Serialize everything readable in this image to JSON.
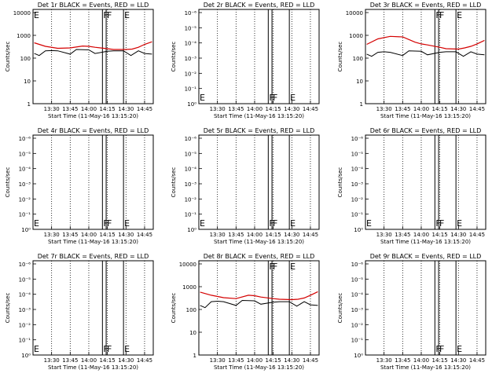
{
  "chart_data": [
    {
      "type": "line",
      "title": "Det 1r BLACK = Events, RED = LLD",
      "xlabel": "Start Time (11-May-16 13:15:20)",
      "ylabel": "Counts/sec",
      "yscale": "log",
      "x_tick_labels": [
        "13:30",
        "13:45",
        "14:00",
        "14:15",
        "14:30",
        "14:45"
      ],
      "y_tick_labels": [
        "1",
        "10",
        "100",
        "1000",
        "10000"
      ],
      "flags": [
        {
          "time": "13:15",
          "label": "E"
        },
        {
          "time": "14:11",
          "label": "F"
        },
        {
          "time": "14:14",
          "label": "F"
        },
        {
          "time": "14:28",
          "label": "E"
        }
      ],
      "series": [
        {
          "name": "Events",
          "color": "#000000",
          "x": [
            "13:16",
            "13:20",
            "13:25",
            "13:30",
            "13:35",
            "13:45",
            "13:50",
            "14:00",
            "14:05",
            "14:15",
            "14:20",
            "14:28",
            "14:34",
            "14:40",
            "14:45",
            "14:51"
          ],
          "y": [
            160,
            130,
            210,
            215,
            210,
            150,
            240,
            230,
            160,
            200,
            210,
            210,
            130,
            210,
            160,
            150
          ]
        },
        {
          "name": "LLD",
          "color": "#d40000",
          "x": [
            "13:16",
            "13:25",
            "13:35",
            "13:45",
            "13:55",
            "14:00",
            "14:05",
            "14:15",
            "14:20",
            "14:30",
            "14:35",
            "14:40",
            "14:45",
            "14:51"
          ],
          "y": [
            470,
            330,
            270,
            280,
            340,
            330,
            300,
            260,
            240,
            240,
            250,
            300,
            400,
            520
          ]
        }
      ]
    },
    {
      "type": "line",
      "title": "Det 2r BLACK = Events, RED = LLD",
      "xlabel": "Start Time (11-May-16 13:15:20)",
      "ylabel": "Counts/sec",
      "yscale": "log",
      "x_tick_labels": [
        "13:30",
        "13:45",
        "14:00",
        "14:15",
        "14:30",
        "14:45"
      ],
      "y_tick_labels": [
        "10⁰",
        "10⁻¹",
        "10⁻²",
        "10⁻³",
        "10⁻⁴",
        "10⁻⁵",
        "10⁻⁶"
      ],
      "flags": [
        {
          "time": "13:15",
          "label": "E"
        },
        {
          "time": "14:11",
          "label": "F"
        },
        {
          "time": "14:14",
          "label": "F"
        },
        {
          "time": "14:28",
          "label": "E"
        }
      ],
      "series": []
    },
    {
      "type": "line",
      "title": "Det 3r BLACK = Events, RED = LLD",
      "xlabel": "Start Time (11-May-16 13:15:20)",
      "ylabel": "Counts/sec",
      "yscale": "log",
      "x_tick_labels": [
        "13:30",
        "13:45",
        "14:00",
        "14:15",
        "14:30",
        "14:45"
      ],
      "y_tick_labels": [
        "1",
        "10",
        "100",
        "1000",
        "10000"
      ],
      "flags": [
        {
          "time": "14:11",
          "label": "F"
        },
        {
          "time": "14:14",
          "label": "F"
        },
        {
          "time": "14:28",
          "label": "E"
        }
      ],
      "series": [
        {
          "name": "Events",
          "color": "#000000",
          "x": [
            "13:16",
            "13:20",
            "13:25",
            "13:30",
            "13:35",
            "13:45",
            "13:50",
            "14:00",
            "14:05",
            "14:15",
            "14:20",
            "14:28",
            "14:34",
            "14:40",
            "14:45",
            "14:51"
          ],
          "y": [
            150,
            120,
            180,
            190,
            180,
            130,
            210,
            200,
            140,
            180,
            190,
            190,
            120,
            190,
            150,
            140
          ]
        },
        {
          "name": "LLD",
          "color": "#d40000",
          "x": [
            "13:16",
            "13:25",
            "13:35",
            "13:45",
            "13:55",
            "14:00",
            "14:05",
            "14:15",
            "14:20",
            "14:30",
            "14:35",
            "14:40",
            "14:45",
            "14:51"
          ],
          "y": [
            400,
            700,
            900,
            850,
            500,
            420,
            380,
            300,
            260,
            250,
            280,
            330,
            420,
            600
          ]
        }
      ]
    },
    {
      "type": "line",
      "title": "Det 4r BLACK = Events, RED = LLD",
      "xlabel": "Start Time (11-May-16 13:15:20)",
      "ylabel": "Counts/sec",
      "yscale": "log",
      "x_tick_labels": [
        "13:30",
        "13:45",
        "14:00",
        "14:15",
        "14:30",
        "14:45"
      ],
      "y_tick_labels": [
        "10⁰",
        "10⁻¹",
        "10⁻²",
        "10⁻³",
        "10⁻⁴",
        "10⁻⁵",
        "10⁻⁶"
      ],
      "flags": [
        {
          "time": "13:15",
          "label": "E"
        },
        {
          "time": "14:11",
          "label": "F"
        },
        {
          "time": "14:14",
          "label": "F"
        },
        {
          "time": "14:28",
          "label": "E"
        }
      ],
      "series": []
    },
    {
      "type": "line",
      "title": "Det 5r BLACK = Events, RED = LLD",
      "xlabel": "Start Time (11-May-16 13:15:20)",
      "ylabel": "Counts/sec",
      "yscale": "log",
      "x_tick_labels": [
        "13:30",
        "13:45",
        "14:00",
        "14:15",
        "14:30",
        "14:45"
      ],
      "y_tick_labels": [
        "10⁰",
        "10⁻¹",
        "10⁻²",
        "10⁻³",
        "10⁻⁴",
        "10⁻⁵",
        "10⁻⁶"
      ],
      "flags": [
        {
          "time": "13:15",
          "label": "E"
        },
        {
          "time": "14:11",
          "label": "F"
        },
        {
          "time": "14:14",
          "label": "F"
        },
        {
          "time": "14:28",
          "label": "E"
        }
      ],
      "series": []
    },
    {
      "type": "line",
      "title": "Det 6r BLACK = Events, RED = LLD",
      "xlabel": "Start Time (11-May-16 13:15:20)",
      "ylabel": "Counts/sec",
      "yscale": "log",
      "x_tick_labels": [
        "13:30",
        "13:45",
        "14:00",
        "14:15",
        "14:30",
        "14:45"
      ],
      "y_tick_labels": [
        "10⁰",
        "10⁻¹",
        "10⁻²",
        "10⁻³",
        "10⁻⁴",
        "10⁻⁵",
        "10⁻⁶"
      ],
      "flags": [
        {
          "time": "13:15",
          "label": "E"
        },
        {
          "time": "14:11",
          "label": "F"
        },
        {
          "time": "14:14",
          "label": "F"
        },
        {
          "time": "14:28",
          "label": "E"
        }
      ],
      "series": []
    },
    {
      "type": "line",
      "title": "Det 7r BLACK = Events, RED = LLD",
      "xlabel": "Start Time (11-May-16 13:15:20)",
      "ylabel": "Counts/sec",
      "yscale": "log",
      "x_tick_labels": [
        "13:30",
        "13:45",
        "14:00",
        "14:15",
        "14:30",
        "14:45"
      ],
      "y_tick_labels": [
        "10⁰",
        "10⁻¹",
        "10⁻²",
        "10⁻³",
        "10⁻⁴",
        "10⁻⁵",
        "10⁻⁶"
      ],
      "flags": [
        {
          "time": "13:15",
          "label": "E"
        },
        {
          "time": "14:11",
          "label": "F"
        },
        {
          "time": "14:14",
          "label": "F"
        },
        {
          "time": "14:28",
          "label": "E"
        }
      ],
      "series": []
    },
    {
      "type": "line",
      "title": "Det 8r BLACK = Events, RED = LLD",
      "xlabel": "Start Time (11-May-16 13:15:20)",
      "ylabel": "Counts/sec",
      "yscale": "log",
      "x_tick_labels": [
        "13:30",
        "13:45",
        "14:00",
        "14:15",
        "14:30",
        "14:45"
      ],
      "y_tick_labels": [
        "1",
        "10",
        "100",
        "1000",
        "10000"
      ],
      "flags": [
        {
          "time": "14:11",
          "label": "F"
        },
        {
          "time": "14:14",
          "label": "F"
        },
        {
          "time": "14:28",
          "label": "E"
        }
      ],
      "series": [
        {
          "name": "Events",
          "color": "#000000",
          "x": [
            "13:16",
            "13:20",
            "13:25",
            "13:30",
            "13:35",
            "13:45",
            "13:50",
            "14:00",
            "14:05",
            "14:15",
            "14:20",
            "14:28",
            "14:34",
            "14:40",
            "14:45",
            "14:51"
          ],
          "y": [
            150,
            120,
            220,
            230,
            220,
            150,
            250,
            240,
            170,
            210,
            220,
            220,
            140,
            220,
            160,
            150
          ]
        },
        {
          "name": "LLD",
          "color": "#d40000",
          "x": [
            "13:16",
            "13:25",
            "13:35",
            "13:45",
            "13:55",
            "14:00",
            "14:05",
            "14:15",
            "14:20",
            "14:30",
            "14:35",
            "14:40",
            "14:45",
            "14:51"
          ],
          "y": [
            580,
            420,
            330,
            300,
            420,
            400,
            350,
            300,
            280,
            270,
            280,
            320,
            420,
            600
          ]
        }
      ]
    },
    {
      "type": "line",
      "title": "Det 9r BLACK = Events, RED = LLD",
      "xlabel": "Start Time (11-May-16 13:15:20)",
      "ylabel": "Counts/sec",
      "yscale": "log",
      "x_tick_labels": [
        "13:30",
        "13:45",
        "14:00",
        "14:15",
        "14:30",
        "14:45"
      ],
      "y_tick_labels": [
        "10⁰",
        "10⁻¹",
        "10⁻²",
        "10⁻³",
        "10⁻⁴",
        "10⁻⁵",
        "10⁻⁶"
      ],
      "flags": [
        {
          "time": "14:11",
          "label": "F"
        },
        {
          "time": "14:14",
          "label": "F"
        },
        {
          "time": "14:28",
          "label": "E"
        }
      ],
      "series": []
    }
  ]
}
